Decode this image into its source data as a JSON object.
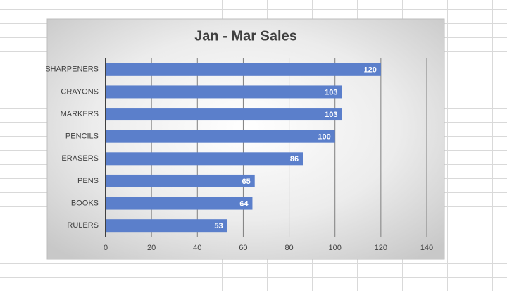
{
  "chart_data": {
    "type": "hbar",
    "title": "Jan - Mar Sales",
    "categories": [
      "SHARPENERS",
      "CRAYONS",
      "MARKERS",
      "PENCILS",
      "ERASERS",
      "PENS",
      "BOOKS",
      "RULERS"
    ],
    "values": [
      120,
      103,
      103,
      100,
      86,
      65,
      64,
      53
    ],
    "color": "#5b7fcb",
    "xlim": [
      0,
      140
    ],
    "xticks": [
      0,
      20,
      40,
      60,
      80,
      100,
      120,
      140
    ],
    "grid": true
  }
}
